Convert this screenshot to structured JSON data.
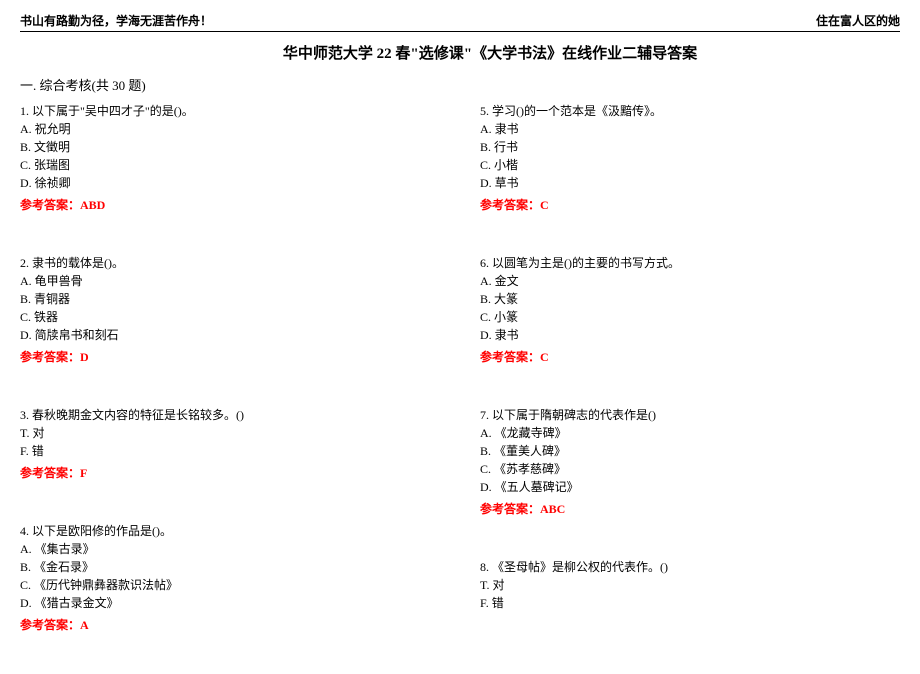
{
  "header": {
    "left": "书山有路勤为径，学海无涯苦作舟！",
    "right": "住在富人区的她"
  },
  "title": "华中师范大学 22 春\"选修课\"《大学书法》在线作业二辅导答案",
  "sectionHeader": "一. 综合考核(共 30 题)",
  "leftQuestions": [
    {
      "stem": "1. 以下属于\"吴中四才子\"的是()。",
      "options": [
        "A. 祝允明",
        "B. 文徵明",
        "C. 张瑞图",
        "D. 徐祯卿"
      ],
      "answer": "参考答案：ABD"
    },
    {
      "stem": "2. 隶书的载体是()。",
      "options": [
        "A. 龟甲兽骨",
        "B. 青铜器",
        "C. 铁器",
        "D. 简牍帛书和刻石"
      ],
      "answer": "参考答案：D"
    },
    {
      "stem": "3. 春秋晚期金文内容的特征是长铭较多。()",
      "options": [
        "T. 对",
        "F. 错"
      ],
      "answer": "参考答案：F"
    },
    {
      "stem": "4. 以下是欧阳修的作品是()。",
      "options": [
        "A. 《集古录》",
        "B. 《金石录》",
        "C. 《历代钟鼎彝器款识法帖》",
        "D. 《猎古录金文》"
      ],
      "answer": "参考答案：A"
    }
  ],
  "rightQuestions": [
    {
      "stem": "5. 学习()的一个范本是《汲黯传》。",
      "options": [
        "A. 隶书",
        "B. 行书",
        "C. 小楷",
        "D. 草书"
      ],
      "answer": "参考答案：C"
    },
    {
      "stem": "6. 以圆笔为主是()的主要的书写方式。",
      "options": [
        "A. 金文",
        "B. 大篆",
        "C. 小篆",
        "D. 隶书"
      ],
      "answer": "参考答案：C"
    },
    {
      "stem": "7. 以下属于隋朝碑志的代表作是()",
      "options": [
        "A. 《龙藏寺碑》",
        "B. 《董美人碑》",
        "C. 《苏孝慈碑》",
        "D. 《五人墓碑记》"
      ],
      "answer": "参考答案：ABC"
    },
    {
      "stem": "8. 《圣母帖》是柳公权的代表作。()",
      "options": [
        "T. 对",
        "F. 错"
      ],
      "answer": ""
    }
  ]
}
